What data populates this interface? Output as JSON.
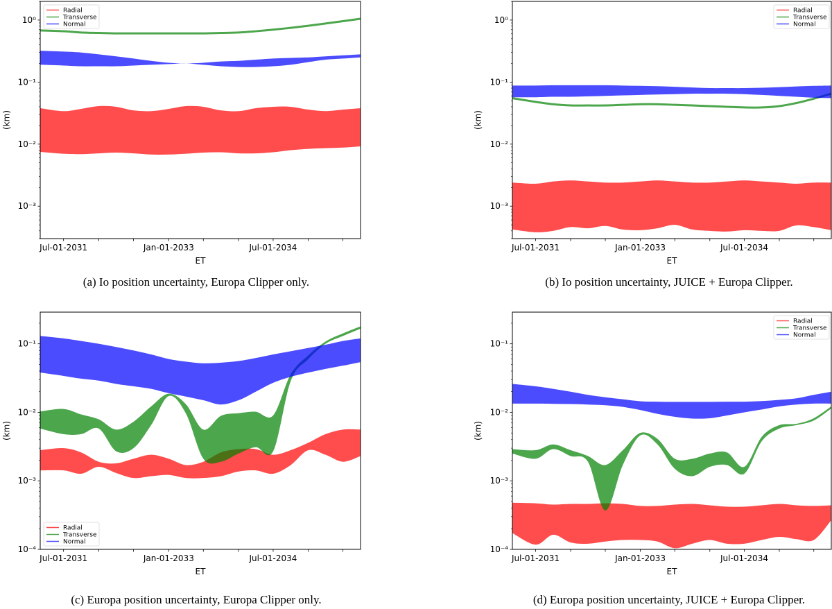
{
  "colors": {
    "Radial": "#ff0000",
    "Transverse": "#008000",
    "Normal": "#0000ff",
    "alpha": 0.7
  },
  "chart_data": [
    {
      "id": "a",
      "type": "area",
      "caption": "(a) Io position uncertainty, Europa Clipper only.",
      "xlabel": "ET",
      "ylabel": "(km)",
      "yscale": "log",
      "ylim": [
        0.0003,
        2.0
      ],
      "xlim": [
        "2031-03-01",
        "2035-10-01"
      ],
      "yticks": [
        1,
        0.1,
        0.01,
        0.001
      ],
      "ytick_labels": [
        "10⁰",
        "10⁻¹",
        "10⁻²",
        "10⁻³"
      ],
      "xticks": [
        "2031-07-01",
        "2032-01-01",
        "2032-07-01",
        "2033-01-01",
        "2033-07-01",
        "2034-01-01",
        "2034-07-01",
        "2035-01-01",
        "2035-07-01"
      ],
      "xtick_labels": [
        "Jul-01-2031",
        "",
        "",
        "Jan-01-2033",
        "",
        "",
        "Jul-01-2034",
        "",
        ""
      ],
      "grid": false,
      "legend": {
        "position": "upper-left",
        "entries": [
          "Radial",
          "Transverse",
          "Normal"
        ]
      },
      "x": [
        "2031-03-01",
        "2031-07-01",
        "2031-10-01",
        "2032-01-01",
        "2032-04-01",
        "2032-07-01",
        "2032-10-01",
        "2033-01-01",
        "2033-04-01",
        "2033-07-01",
        "2033-10-01",
        "2034-01-01",
        "2034-04-01",
        "2034-07-01",
        "2034-10-01",
        "2035-01-01",
        "2035-04-01",
        "2035-07-01",
        "2035-10-01"
      ],
      "series": [
        {
          "name": "Radial",
          "kind": "band",
          "upper": [
            0.038,
            0.034,
            0.037,
            0.041,
            0.04,
            0.035,
            0.034,
            0.037,
            0.041,
            0.04,
            0.035,
            0.034,
            0.038,
            0.04,
            0.04,
            0.036,
            0.034,
            0.036,
            0.038
          ],
          "lower": [
            0.0075,
            0.007,
            0.0069,
            0.0071,
            0.0073,
            0.0071,
            0.0068,
            0.0068,
            0.007,
            0.0073,
            0.0074,
            0.0071,
            0.0071,
            0.0074,
            0.008,
            0.0084,
            0.0086,
            0.0088,
            0.0092
          ]
        },
        {
          "name": "Transverse",
          "kind": "line",
          "values": [
            0.68,
            0.66,
            0.63,
            0.62,
            0.61,
            0.61,
            0.61,
            0.61,
            0.61,
            0.61,
            0.62,
            0.63,
            0.66,
            0.7,
            0.75,
            0.81,
            0.88,
            0.96,
            1.05
          ]
        },
        {
          "name": "Normal",
          "kind": "band",
          "upper": [
            0.32,
            0.31,
            0.3,
            0.28,
            0.26,
            0.24,
            0.22,
            0.205,
            0.2,
            0.205,
            0.215,
            0.22,
            0.23,
            0.24,
            0.245,
            0.25,
            0.26,
            0.27,
            0.28
          ],
          "lower": [
            0.19,
            0.185,
            0.18,
            0.18,
            0.18,
            0.185,
            0.19,
            0.195,
            0.2,
            0.19,
            0.18,
            0.175,
            0.175,
            0.18,
            0.19,
            0.21,
            0.23,
            0.24,
            0.25
          ]
        }
      ]
    },
    {
      "id": "b",
      "type": "area",
      "caption": "(b) Io position uncertainty, JUICE + Europa Clipper.",
      "xlabel": "ET",
      "ylabel": "(km)",
      "yscale": "log",
      "ylim": [
        0.0003,
        2.0
      ],
      "xlim": [
        "2031-03-01",
        "2035-10-01"
      ],
      "yticks": [
        1,
        0.1,
        0.01,
        0.001
      ],
      "ytick_labels": [
        "10⁰",
        "10⁻¹",
        "10⁻²",
        "10⁻³"
      ],
      "xticks": [
        "2031-07-01",
        "2032-01-01",
        "2032-07-01",
        "2033-01-01",
        "2033-07-01",
        "2034-01-01",
        "2034-07-01",
        "2035-01-01",
        "2035-07-01"
      ],
      "xtick_labels": [
        "Jul-01-2031",
        "",
        "",
        "Jan-01-2033",
        "",
        "",
        "Jul-01-2034",
        "",
        ""
      ],
      "grid": false,
      "legend": {
        "position": "upper-right",
        "entries": [
          "Radial",
          "Transverse",
          "Normal"
        ]
      },
      "x": [
        "2031-03-01",
        "2031-07-01",
        "2031-10-01",
        "2032-01-01",
        "2032-04-01",
        "2032-07-01",
        "2032-10-01",
        "2033-01-01",
        "2033-04-01",
        "2033-07-01",
        "2033-10-01",
        "2034-01-01",
        "2034-04-01",
        "2034-07-01",
        "2034-10-01",
        "2035-01-01",
        "2035-04-01",
        "2035-07-01",
        "2035-10-01"
      ],
      "series": [
        {
          "name": "Radial",
          "kind": "band",
          "upper": [
            0.0024,
            0.0023,
            0.0025,
            0.0026,
            0.0025,
            0.0024,
            0.0024,
            0.0025,
            0.0026,
            0.0025,
            0.0024,
            0.0024,
            0.0025,
            0.0026,
            0.0025,
            0.0024,
            0.0023,
            0.0024,
            0.0024
          ],
          "lower": [
            0.00042,
            0.00038,
            0.0004,
            0.00046,
            0.00044,
            0.00048,
            0.00042,
            0.00041,
            0.00044,
            0.0005,
            0.00042,
            0.0004,
            0.00039,
            0.00041,
            0.0004,
            0.0004,
            0.00049,
            0.00046,
            0.00041
          ]
        },
        {
          "name": "Transverse",
          "kind": "line",
          "values": [
            0.055,
            0.048,
            0.044,
            0.042,
            0.042,
            0.042,
            0.043,
            0.044,
            0.044,
            0.043,
            0.042,
            0.041,
            0.04,
            0.039,
            0.039,
            0.041,
            0.046,
            0.054,
            0.065
          ]
        },
        {
          "name": "Normal",
          "kind": "band",
          "upper": [
            0.088,
            0.088,
            0.089,
            0.089,
            0.089,
            0.089,
            0.088,
            0.087,
            0.086,
            0.084,
            0.082,
            0.08,
            0.08,
            0.08,
            0.081,
            0.083,
            0.085,
            0.087,
            0.088
          ],
          "lower": [
            0.057,
            0.057,
            0.058,
            0.058,
            0.059,
            0.06,
            0.061,
            0.062,
            0.063,
            0.064,
            0.065,
            0.065,
            0.065,
            0.064,
            0.062,
            0.06,
            0.058,
            0.056,
            0.055
          ]
        }
      ]
    },
    {
      "id": "c",
      "type": "area",
      "caption": "(c) Europa position uncertainty, Europa Clipper only.",
      "xlabel": "ET",
      "ylabel": "(km)",
      "yscale": "log",
      "ylim": [
        0.0001,
        0.29
      ],
      "xlim": [
        "2031-03-01",
        "2035-10-01"
      ],
      "yticks": [
        0.1,
        0.01,
        0.001,
        0.0001
      ],
      "ytick_labels": [
        "10⁻¹",
        "10⁻²",
        "10⁻³",
        "10⁻⁴"
      ],
      "xticks": [
        "2031-07-01",
        "2032-01-01",
        "2032-07-01",
        "2033-01-01",
        "2033-07-01",
        "2034-01-01",
        "2034-07-01",
        "2035-01-01",
        "2035-07-01"
      ],
      "xtick_labels": [
        "Jul-01-2031",
        "",
        "",
        "Jan-01-2033",
        "",
        "",
        "Jul-01-2034",
        "",
        ""
      ],
      "grid": false,
      "legend": {
        "position": "lower-left",
        "entries": [
          "Radial",
          "Transverse",
          "Normal"
        ]
      },
      "x": [
        "2031-03-01",
        "2031-07-01",
        "2031-10-01",
        "2032-01-01",
        "2032-04-01",
        "2032-07-01",
        "2032-10-01",
        "2033-01-01",
        "2033-04-01",
        "2033-07-01",
        "2033-10-01",
        "2034-01-01",
        "2034-04-01",
        "2034-07-01",
        "2034-10-01",
        "2035-01-01",
        "2035-04-01",
        "2035-07-01",
        "2035-10-01"
      ],
      "series": [
        {
          "name": "Radial",
          "kind": "band",
          "upper": [
            0.0028,
            0.003,
            0.0026,
            0.0019,
            0.0018,
            0.0021,
            0.0024,
            0.0021,
            0.0017,
            0.0019,
            0.0026,
            0.0029,
            0.0029,
            0.0024,
            0.0028,
            0.0036,
            0.0048,
            0.0056,
            0.0056
          ],
          "lower": [
            0.00142,
            0.00142,
            0.00127,
            0.0016,
            0.0013,
            0.0011,
            0.00117,
            0.00122,
            0.0011,
            0.0011,
            0.00117,
            0.00137,
            0.00142,
            0.00127,
            0.0017,
            0.0028,
            0.0024,
            0.0019,
            0.0023
          ]
        },
        {
          "name": "Transverse",
          "kind": "band",
          "upper": [
            0.0103,
            0.0112,
            0.0093,
            0.0079,
            0.0056,
            0.0073,
            0.0122,
            0.0187,
            0.0131,
            0.0056,
            0.0089,
            0.0097,
            0.0102,
            0.009,
            0.036,
            0.068,
            0.108,
            0.142,
            0.18
          ],
          "lower": [
            0.0058,
            0.0048,
            0.0048,
            0.0058,
            0.0027,
            0.003,
            0.0065,
            0.0173,
            0.0096,
            0.0021,
            0.0019,
            0.0025,
            0.0031,
            0.0027,
            0.0287,
            0.06,
            0.1,
            0.13,
            0.166
          ]
        },
        {
          "name": "Normal",
          "kind": "band",
          "upper": [
            0.13,
            0.12,
            0.11,
            0.1,
            0.09,
            0.08,
            0.07,
            0.06,
            0.055,
            0.052,
            0.053,
            0.056,
            0.062,
            0.07,
            0.078,
            0.087,
            0.097,
            0.11,
            0.12
          ],
          "lower": [
            0.038,
            0.034,
            0.031,
            0.029,
            0.026,
            0.024,
            0.022,
            0.019,
            0.017,
            0.015,
            0.013,
            0.015,
            0.02,
            0.027,
            0.033,
            0.038,
            0.043,
            0.048,
            0.054
          ]
        }
      ]
    },
    {
      "id": "d",
      "type": "area",
      "caption": "(d) Europa position uncertainty, JUICE + Europa Clipper.",
      "xlabel": "ET",
      "ylabel": "(km)",
      "yscale": "log",
      "ylim": [
        0.0001,
        0.29
      ],
      "xlim": [
        "2031-03-01",
        "2035-10-01"
      ],
      "yticks": [
        0.1,
        0.01,
        0.001,
        0.0001
      ],
      "ytick_labels": [
        "10⁻¹",
        "10⁻²",
        "10⁻³",
        "10⁻⁴"
      ],
      "xticks": [
        "2031-07-01",
        "2032-01-01",
        "2032-07-01",
        "2033-01-01",
        "2033-07-01",
        "2034-01-01",
        "2034-07-01",
        "2035-01-01",
        "2035-07-01"
      ],
      "xtick_labels": [
        "Jul-01-2031",
        "",
        "",
        "Jan-01-2033",
        "",
        "",
        "Jul-01-2034",
        "",
        ""
      ],
      "grid": false,
      "legend": {
        "position": "upper-right",
        "entries": [
          "Radial",
          "Transverse",
          "Normal"
        ]
      },
      "x": [
        "2031-03-01",
        "2031-07-01",
        "2031-10-01",
        "2032-01-01",
        "2032-04-01",
        "2032-07-01",
        "2032-10-01",
        "2033-01-01",
        "2033-04-01",
        "2033-07-01",
        "2033-10-01",
        "2034-01-01",
        "2034-04-01",
        "2034-07-01",
        "2034-10-01",
        "2035-01-01",
        "2035-04-01",
        "2035-07-01",
        "2035-10-01"
      ],
      "series": [
        {
          "name": "Radial",
          "kind": "band",
          "upper": [
            0.00048,
            0.00047,
            0.00045,
            0.00046,
            0.00046,
            0.00047,
            0.00046,
            0.00043,
            0.00043,
            0.00045,
            0.00046,
            0.00044,
            0.00042,
            0.00042,
            0.00044,
            0.00046,
            0.00044,
            0.00043,
            0.00044
          ],
          "lower": [
            0.000173,
            0.000117,
            0.000163,
            0.000126,
            0.000121,
            0.00013,
            0.000137,
            0.000137,
            0.00013,
            0.000104,
            0.000121,
            0.000137,
            0.000121,
            0.000121,
            0.000137,
            0.000152,
            0.000141,
            0.000137,
            0.000266
          ]
        },
        {
          "name": "Transverse",
          "kind": "band",
          "upper": [
            0.0029,
            0.0028,
            0.0034,
            0.0028,
            0.0023,
            0.0017,
            0.0028,
            0.005,
            0.0041,
            0.0021,
            0.0021,
            0.0025,
            0.0026,
            0.0016,
            0.0044,
            0.0065,
            0.0068,
            0.0082,
            0.0122
          ],
          "lower": [
            0.0025,
            0.0021,
            0.0029,
            0.0023,
            0.0019,
            0.00037,
            0.0017,
            0.0046,
            0.0034,
            0.0015,
            0.00117,
            0.0016,
            0.0017,
            0.00127,
            0.0038,
            0.0058,
            0.0065,
            0.0076,
            0.0114
          ]
        },
        {
          "name": "Normal",
          "kind": "band",
          "upper": [
            0.026,
            0.024,
            0.022,
            0.02,
            0.018,
            0.0166,
            0.0155,
            0.0145,
            0.0143,
            0.0142,
            0.0142,
            0.0142,
            0.0143,
            0.0143,
            0.0146,
            0.0152,
            0.016,
            0.018,
            0.02
          ],
          "lower": [
            0.0134,
            0.0134,
            0.0133,
            0.0132,
            0.013,
            0.0127,
            0.012,
            0.0108,
            0.0095,
            0.0086,
            0.0081,
            0.0082,
            0.009,
            0.01,
            0.011,
            0.0122,
            0.013,
            0.0134,
            0.0134
          ]
        }
      ]
    }
  ]
}
